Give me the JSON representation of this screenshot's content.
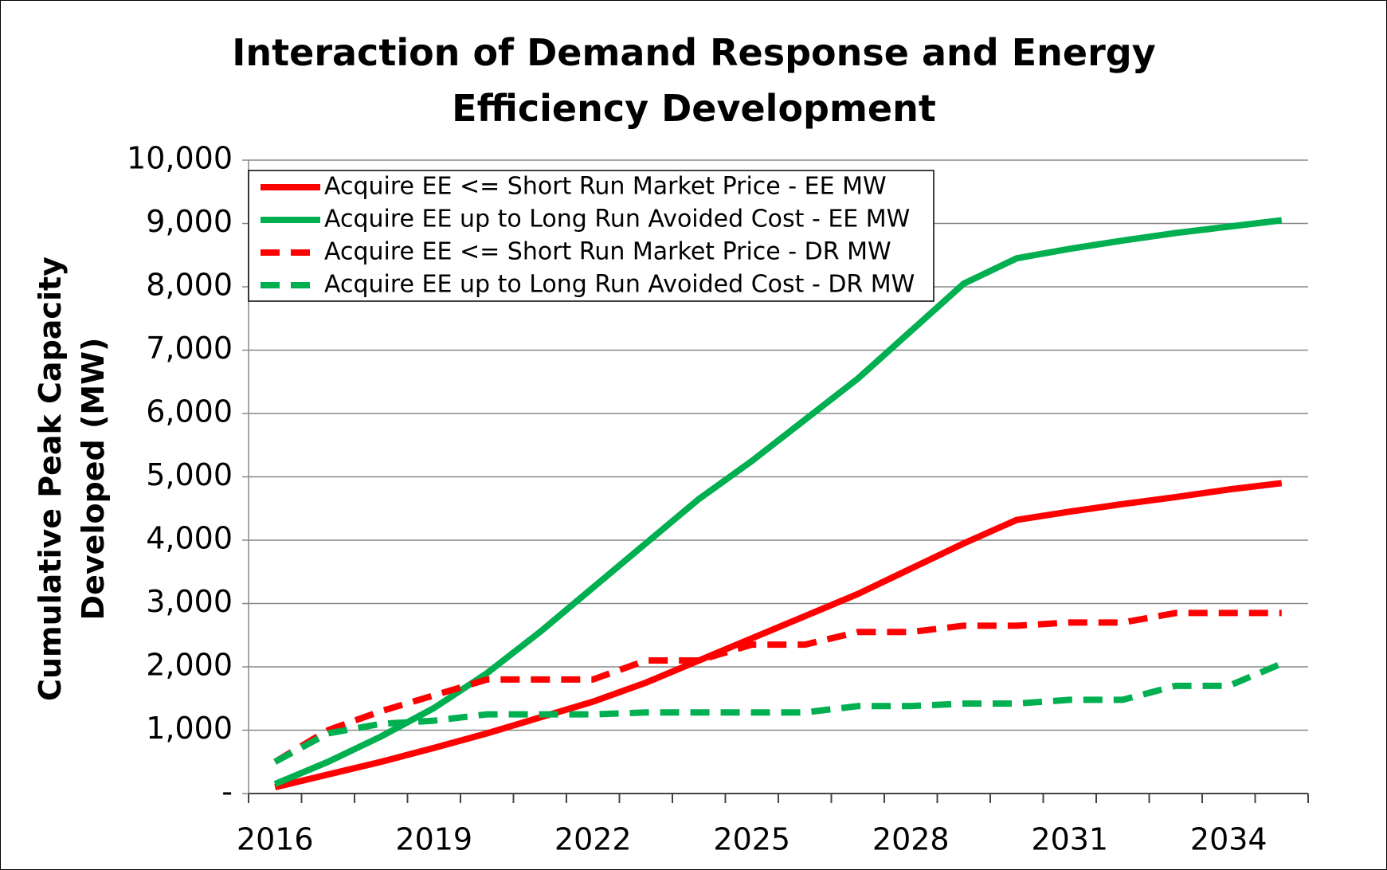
{
  "chart_data": {
    "type": "line",
    "title": "Interaction of Demand Response and Energy Efficiency Development",
    "y_label": "Cumulative Peak Capacity Developed (MW)",
    "categories": [
      "2016",
      null,
      null,
      "2019",
      null,
      null,
      "2022",
      null,
      null,
      "2025",
      null,
      null,
      "2028",
      null,
      null,
      "2031",
      null,
      null,
      "2034",
      null
    ],
    "series": [
      {
        "name": "Acquire EE <= Short Run Market Price - EE MW",
        "color": "#ff0000",
        "dashed": false,
        "values": [
          100,
          300,
          500,
          720,
          950,
          1200,
          1450,
          1750,
          2100,
          2450,
          2800,
          3150,
          3550,
          3950,
          4320,
          4450,
          4570,
          4680,
          4800,
          4900
        ]
      },
      {
        "name": "Acquire EE up to Long Run Avoided Cost - EE MW",
        "color": "#00b050",
        "dashed": false,
        "values": [
          150,
          500,
          900,
          1350,
          1900,
          2550,
          3250,
          3950,
          4650,
          5250,
          5900,
          6550,
          7300,
          8050,
          8450,
          8600,
          8730,
          8850,
          8950,
          9050
        ]
      },
      {
        "name": "Acquire EE <= Short Run Market Price - DR MW",
        "color": "#ff0000",
        "dashed": true,
        "values": [
          500,
          1000,
          1300,
          1550,
          1800,
          1800,
          1800,
          2100,
          2100,
          2350,
          2350,
          2550,
          2550,
          2650,
          2650,
          2700,
          2700,
          2850,
          2850,
          2850
        ]
      },
      {
        "name": "Acquire EE up to Long Run Avoided Cost - DR MW",
        "color": "#00b050",
        "dashed": true,
        "values": [
          500,
          950,
          1100,
          1150,
          1250,
          1250,
          1250,
          1280,
          1280,
          1280,
          1280,
          1380,
          1380,
          1420,
          1420,
          1480,
          1480,
          1700,
          1700,
          2050
        ]
      }
    ],
    "ylim": [
      0,
      10000
    ],
    "yticks": [
      {
        "value": 0,
        "label": "-"
      },
      {
        "value": 1000,
        "label": "1,000"
      },
      {
        "value": 2000,
        "label": "2,000"
      },
      {
        "value": 3000,
        "label": "3,000"
      },
      {
        "value": 4000,
        "label": "4,000"
      },
      {
        "value": 5000,
        "label": "5,000"
      },
      {
        "value": 6000,
        "label": "6,000"
      },
      {
        "value": 7000,
        "label": "7,000"
      },
      {
        "value": 8000,
        "label": "8,000"
      },
      {
        "value": 9000,
        "label": "9,000"
      },
      {
        "value": 10000,
        "label": "10,000"
      }
    ],
    "grid": true,
    "legend": "top-left"
  }
}
